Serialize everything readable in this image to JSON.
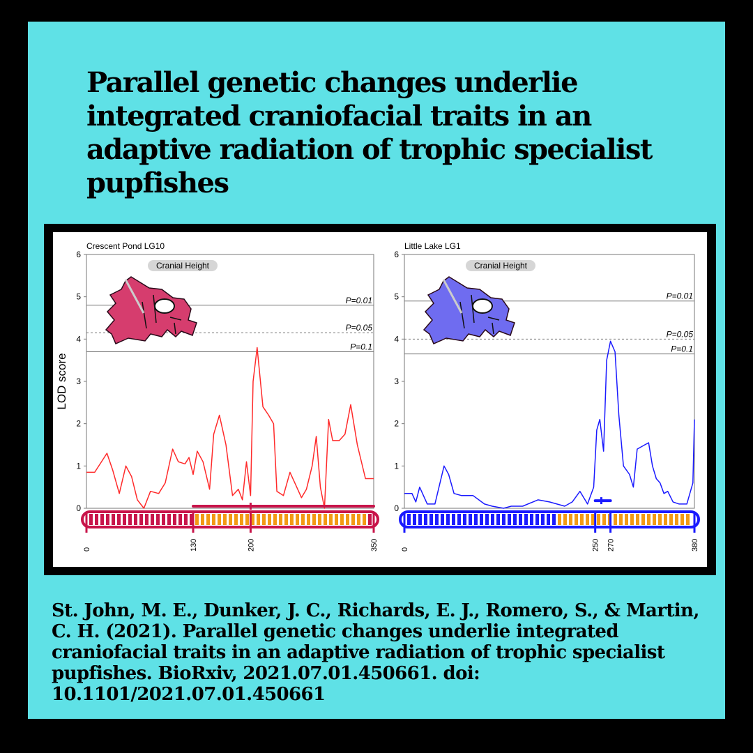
{
  "title": "Parallel genetic changes underlie integrated craniofacial traits in an adaptive radiation of trophic specialist pupfishes",
  "citation": "St. John, M. E., Dunker, J. C., Richards, E. J., Romero, S., & Martin, C. H. (2021). Parallel genetic changes underlie integrated craniofacial traits in an adaptive radiation of trophic specialist pupfishes. BioRxiv, 2021.07.01.450661. doi: 10.1101/2021.07.01.450661",
  "colors": {
    "background": "#5fe1e6",
    "crescent": "#ff2a2a",
    "crescent_fish": "#d63d6e",
    "little": "#1a1aff",
    "little_fish": "#6f6cf0",
    "orange": "#f39a14"
  },
  "chart_data": [
    {
      "type": "line",
      "title": "Crescent Pond LG10",
      "ylabel": "LOD score",
      "xlabel": "",
      "ylim": [
        0,
        6
      ],
      "yticks": [
        0,
        1,
        2,
        3,
        4,
        5,
        6
      ],
      "xlim": [
        0,
        350
      ],
      "xticks": [
        0,
        130,
        200,
        350
      ],
      "fish_label": "Cranial Height",
      "thresholds": [
        {
          "label": "P=0.01",
          "value": 4.8,
          "style": "solid"
        },
        {
          "label": "P=0.05",
          "value": 4.15,
          "style": "dashed"
        },
        {
          "label": "P=0.1",
          "value": 3.7,
          "style": "solid"
        }
      ],
      "interval": {
        "start": 130,
        "end": 350,
        "peak": 200
      },
      "series": [
        {
          "color": "#ff2a2a",
          "x": [
            0,
            10,
            25,
            32,
            40,
            48,
            55,
            62,
            70,
            78,
            88,
            96,
            105,
            112,
            120,
            125,
            130,
            135,
            142,
            150,
            155,
            162,
            170,
            178,
            185,
            190,
            195,
            200,
            203,
            208,
            215,
            222,
            228,
            232,
            240,
            248,
            255,
            262,
            268,
            275,
            280,
            285,
            290,
            295,
            300,
            308,
            315,
            322,
            330,
            340,
            350
          ],
          "y": [
            0.85,
            0.85,
            1.3,
            0.9,
            0.35,
            1.0,
            0.75,
            0.2,
            0.0,
            0.4,
            0.35,
            0.6,
            1.4,
            1.1,
            1.05,
            1.2,
            0.8,
            1.35,
            1.1,
            0.45,
            1.75,
            2.2,
            1.5,
            0.3,
            0.45,
            0.2,
            1.1,
            0.3,
            3.0,
            3.8,
            2.4,
            2.2,
            2.0,
            0.4,
            0.3,
            0.85,
            0.55,
            0.25,
            0.45,
            1.0,
            1.7,
            0.5,
            0.0,
            2.1,
            1.6,
            1.6,
            1.75,
            2.45,
            1.5,
            0.7,
            0.7
          ]
        }
      ]
    },
    {
      "type": "line",
      "title": "Little Lake LG1",
      "ylabel": "",
      "xlabel": "",
      "ylim": [
        0,
        6
      ],
      "yticks": [
        0,
        1,
        2,
        3,
        4,
        5,
        6
      ],
      "xlim": [
        0,
        380
      ],
      "xticks": [
        0,
        250,
        270,
        380
      ],
      "fish_label": "Cranial Height",
      "thresholds": [
        {
          "label": "P=0.01",
          "value": 4.9,
          "style": "solid"
        },
        {
          "label": "P=0.05",
          "value": 4.0,
          "style": "dashed"
        },
        {
          "label": "P=0.1",
          "value": 3.65,
          "style": "solid"
        }
      ],
      "interval": {
        "start": 250,
        "end": 270,
        "peak": 258
      },
      "series": [
        {
          "color": "#1a1aff",
          "x": [
            0,
            10,
            15,
            20,
            30,
            40,
            52,
            58,
            65,
            75,
            90,
            105,
            115,
            130,
            140,
            155,
            175,
            190,
            210,
            220,
            230,
            240,
            248,
            252,
            256,
            261,
            265,
            270,
            276,
            281,
            287,
            295,
            300,
            305,
            315,
            320,
            325,
            330,
            335,
            340,
            345,
            352,
            360,
            370,
            378,
            380
          ],
          "y": [
            0.35,
            0.35,
            0.15,
            0.5,
            0.1,
            0.1,
            1.0,
            0.8,
            0.35,
            0.3,
            0.3,
            0.1,
            0.05,
            0.0,
            0.05,
            0.05,
            0.2,
            0.15,
            0.05,
            0.15,
            0.4,
            0.1,
            0.5,
            1.85,
            2.1,
            1.35,
            3.5,
            3.95,
            3.7,
            2.2,
            1.0,
            0.8,
            0.5,
            1.4,
            1.5,
            1.55,
            1.0,
            0.7,
            0.6,
            0.35,
            0.4,
            0.15,
            0.1,
            0.1,
            0.6,
            2.1
          ]
        }
      ]
    }
  ]
}
